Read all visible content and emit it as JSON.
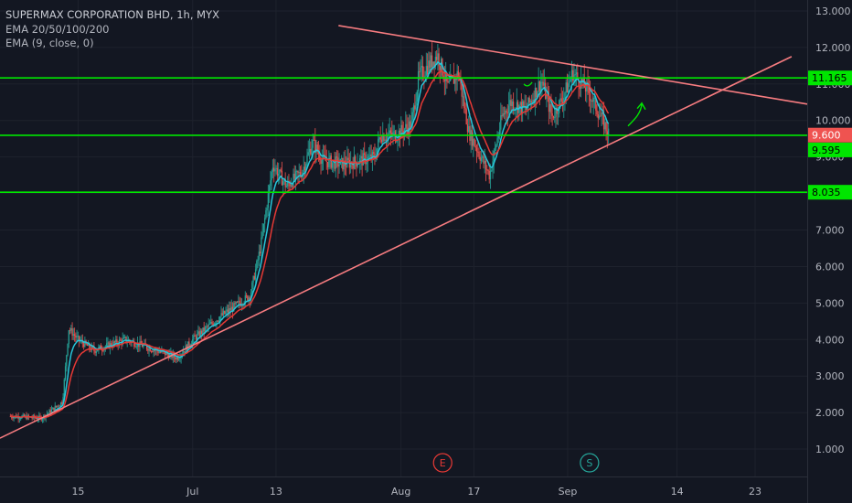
{
  "legend": {
    "title": "SUPERMAX CORPORATION BHD, 1h, MYX",
    "indicators": [
      "EMA 20/50/100/200",
      "EMA (9, close, 0)"
    ]
  },
  "chart_data": {
    "type": "candlestick",
    "symbol": "SUPERMAX CORPORATION BHD",
    "interval": "1h",
    "exchange": "MYX",
    "y_ticks": [
      "1.000",
      "2.000",
      "3.000",
      "4.000",
      "5.000",
      "6.000",
      "7.000",
      "8.000",
      "9.000",
      "10.000",
      "11.000",
      "12.000",
      "13.000"
    ],
    "ylim": [
      0.25,
      13.3
    ],
    "x_ticks": [
      {
        "label": "15",
        "t": 6.5
      },
      {
        "label": "Jul",
        "t": 17.5
      },
      {
        "label": "13",
        "t": 25.5
      },
      {
        "label": "Aug",
        "t": 37.5
      },
      {
        "label": "17",
        "t": 44.5
      },
      {
        "label": "Sep",
        "t": 53.5
      },
      {
        "label": "14",
        "t": 64
      },
      {
        "label": "23",
        "t": 71.5
      }
    ],
    "xlim": [
      -1,
      76.5
    ],
    "price_path": [
      [
        0,
        1.9
      ],
      [
        3,
        1.85
      ],
      [
        5,
        2.3
      ],
      [
        5.6,
        4.3
      ],
      [
        6.5,
        4.0
      ],
      [
        8,
        3.7
      ],
      [
        11,
        4.0
      ],
      [
        14,
        3.7
      ],
      [
        16,
        3.5
      ],
      [
        17.5,
        4.0
      ],
      [
        20,
        4.6
      ],
      [
        23,
        5.2
      ],
      [
        24,
        6.5
      ],
      [
        25.2,
        8.8
      ],
      [
        26.5,
        8.2
      ],
      [
        28,
        8.6
      ],
      [
        29,
        9.4
      ],
      [
        30,
        8.9
      ],
      [
        32,
        8.8
      ],
      [
        35,
        9.0
      ],
      [
        35.5,
        9.6
      ],
      [
        37,
        9.6
      ],
      [
        38.5,
        9.9
      ],
      [
        39.2,
        11.2
      ],
      [
        41,
        11.8
      ],
      [
        42,
        10.9
      ],
      [
        43,
        11.3
      ],
      [
        44,
        9.7
      ],
      [
        46,
        8.5
      ],
      [
        47.2,
        10.1
      ],
      [
        48,
        10.5
      ],
      [
        49.5,
        10.3
      ],
      [
        51,
        11.1
      ],
      [
        52,
        10.1
      ],
      [
        53,
        10.6
      ],
      [
        54,
        11.3
      ],
      [
        55.5,
        10.8
      ],
      [
        56.5,
        10.2
      ],
      [
        57.5,
        9.6
      ]
    ],
    "series": [
      {
        "name": "EMA (9, close, 0)",
        "color": "#26c6da"
      },
      {
        "name": "EMA 20",
        "color": "#e53935"
      }
    ],
    "horizontal_levels": [
      {
        "label": "11.165",
        "value": 11.165,
        "color": "#00e600"
      },
      {
        "label": "9.595",
        "value": 9.595,
        "color": "#00e600"
      },
      {
        "label": "8.035",
        "value": 8.035,
        "color": "#00e600"
      }
    ],
    "last_price": {
      "label": "9.600",
      "value": 9.6,
      "color": "#ef5350"
    },
    "trend_lines": [
      {
        "from": [
          -1,
          1.3
        ],
        "to": [
          75,
          11.75
        ],
        "color": "#f77c80"
      },
      {
        "from": [
          31.5,
          12.6
        ],
        "to": [
          76.5,
          10.45
        ],
        "color": "#f77c80"
      }
    ],
    "events": [
      {
        "label": "E",
        "t": 41.5,
        "color": "#e53935"
      },
      {
        "label": "S",
        "t": 55.6,
        "color": "#26a69a"
      }
    ]
  }
}
